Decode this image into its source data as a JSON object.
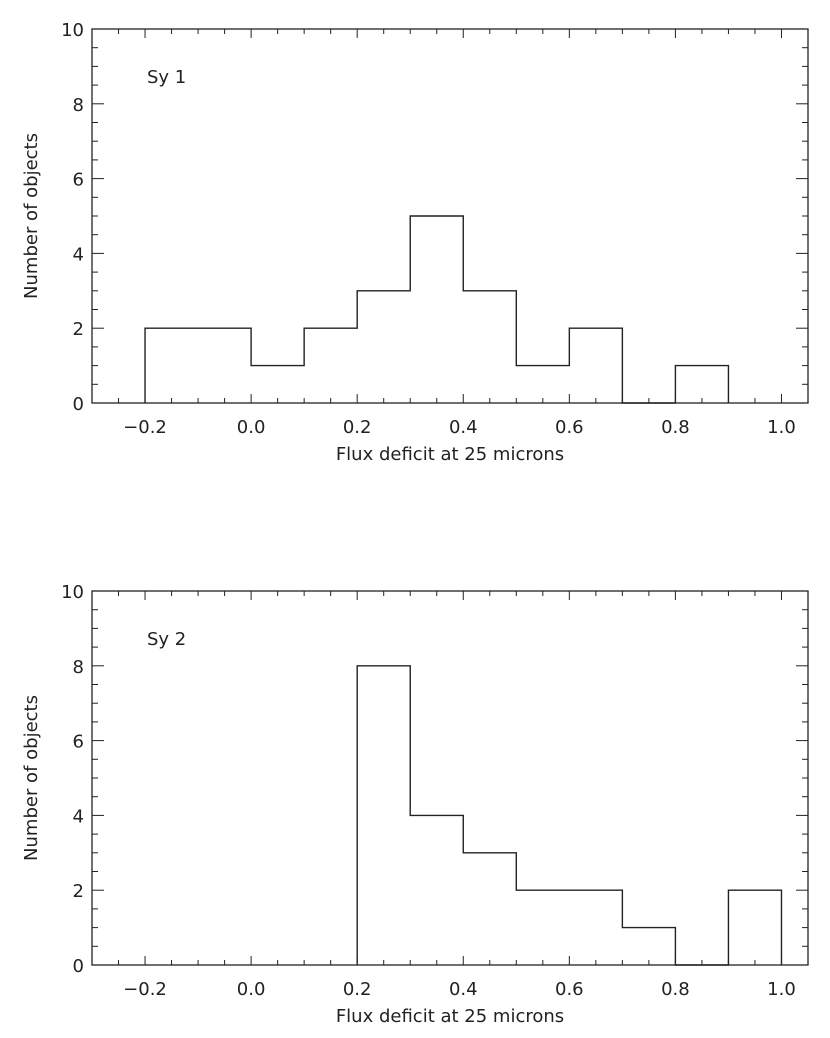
{
  "figure": {
    "color": "#222222"
  },
  "chart_data": [
    {
      "type": "histogram",
      "panel_label": "Sy 1",
      "xlabel": "Flux deficit at 25 microns",
      "ylabel": "Number of objects",
      "xlim": [
        -0.3,
        1.05
      ],
      "ylim": [
        0,
        10
      ],
      "x_ticks": [
        -0.2,
        0.0,
        0.2,
        0.4,
        0.6,
        0.8,
        1.0
      ],
      "x_tick_labels": [
        "−0.2",
        "0.0",
        "0.2",
        "0.4",
        "0.6",
        "0.8",
        "1.0"
      ],
      "y_ticks": [
        0,
        2,
        4,
        6,
        8,
        10
      ],
      "y_tick_labels": [
        "0",
        "2",
        "4",
        "6",
        "8",
        "10"
      ],
      "bin_edges": [
        -0.2,
        -0.1,
        0.0,
        0.1,
        0.2,
        0.3,
        0.4,
        0.5,
        0.6,
        0.7,
        0.8,
        0.9
      ],
      "counts": [
        2,
        2,
        1,
        2,
        3,
        5,
        3,
        1,
        2,
        0,
        1
      ]
    },
    {
      "type": "histogram",
      "panel_label": "Sy 2",
      "xlabel": "Flux deficit at 25 microns",
      "ylabel": "Number of objects",
      "xlim": [
        -0.3,
        1.05
      ],
      "ylim": [
        0,
        10
      ],
      "x_ticks": [
        -0.2,
        0.0,
        0.2,
        0.4,
        0.6,
        0.8,
        1.0
      ],
      "x_tick_labels": [
        "−0.2",
        "0.0",
        "0.2",
        "0.4",
        "0.6",
        "0.8",
        "1.0"
      ],
      "y_ticks": [
        0,
        2,
        4,
        6,
        8,
        10
      ],
      "y_tick_labels": [
        "0",
        "2",
        "4",
        "6",
        "8",
        "10"
      ],
      "bin_edges": [
        0.2,
        0.3,
        0.4,
        0.5,
        0.6,
        0.7,
        0.8,
        0.9,
        1.0
      ],
      "counts": [
        8,
        4,
        3,
        2,
        2,
        1,
        0,
        2
      ]
    }
  ]
}
